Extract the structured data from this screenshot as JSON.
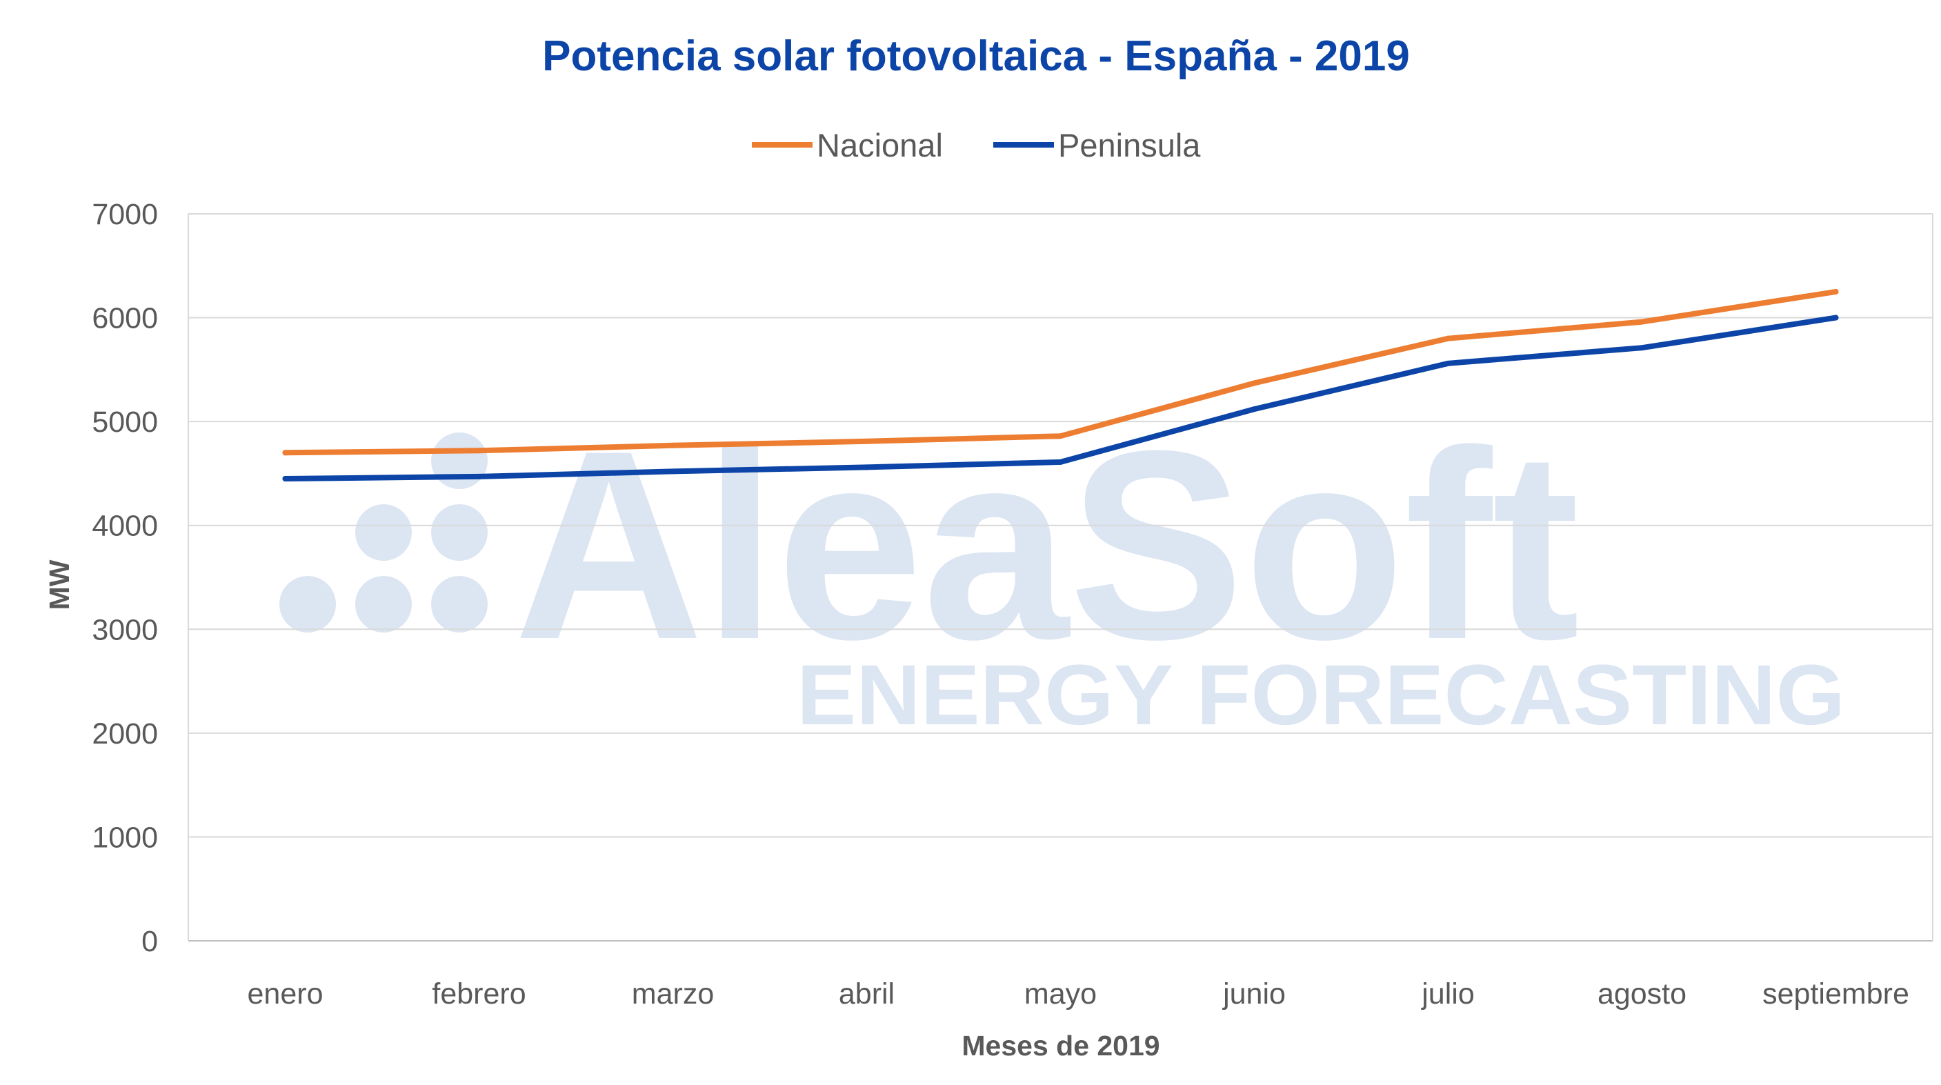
{
  "chart_data": {
    "type": "line",
    "title": "Potencia solar fotovoltaica - España - 2019",
    "xlabel": "Meses de 2019",
    "ylabel": "MW",
    "categories": [
      "enero",
      "febrero",
      "marzo",
      "abril",
      "mayo",
      "junio",
      "julio",
      "agosto",
      "septiembre"
    ],
    "ylim": [
      0,
      7000
    ],
    "yticks": [
      "0",
      "1000",
      "2000",
      "3000",
      "4000",
      "5000",
      "6000",
      "7000"
    ],
    "grid": true,
    "legend_position": "top",
    "series": [
      {
        "name": "Nacional",
        "color": "#ED7D31",
        "values": [
          4700,
          4720,
          4770,
          4810,
          4860,
          5370,
          5800,
          5960,
          6250
        ]
      },
      {
        "name": "Peninsula",
        "color": "#0C45A7",
        "values": [
          4450,
          4470,
          4520,
          4560,
          4610,
          5120,
          5560,
          5710,
          6000
        ]
      }
    ]
  },
  "watermark": {
    "brand": "AleaSoft",
    "tagline": "ENERGY FORECASTING",
    "color": "#DCE5F2"
  },
  "colors": {
    "title": "#0C45A7",
    "text": "#595959",
    "grid": "#D9D9D9",
    "axis": "#BFBFBF"
  }
}
